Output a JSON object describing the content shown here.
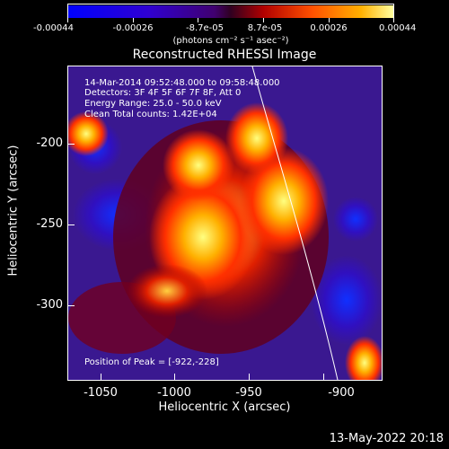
{
  "colorbar": {
    "ticks": [
      "-0.00044",
      "-0.00026",
      "-8.7e-05",
      "8.7e-05",
      "0.00026",
      "0.00044"
    ],
    "units": "(photons cm⁻² s⁻¹ asec⁻²)"
  },
  "title": "Reconstructed RHESSI Image",
  "annotations": {
    "line1": "14-Mar-2014 09:52:48.000 to 09:58:48.000",
    "line2": "Detectors: 3F 4F 5F 6F 7F 8F, Att 0",
    "line3": "Energy Range: 25.0 - 50.0 keV",
    "line4": "Clean    Total counts: 1.42E+04",
    "peak": "Position of Peak = [-922,-228]"
  },
  "axes": {
    "xlabel": "Heliocentric X (arcsec)",
    "ylabel": "Heliocentric Y (arcsec)",
    "xticks": [
      "-1050",
      "-1000",
      "-950",
      "-900"
    ],
    "yticks": [
      "-200",
      "-250",
      "-300"
    ]
  },
  "footer": "13-May-2022 20:18"
}
